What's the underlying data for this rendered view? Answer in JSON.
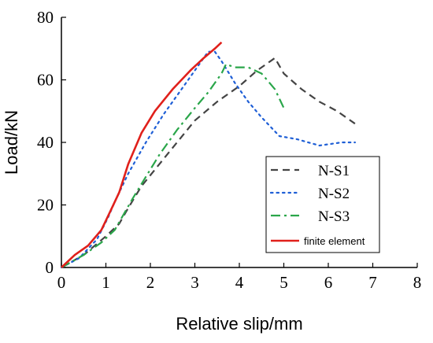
{
  "chart_data": {
    "type": "line",
    "title": "",
    "xlabel": "Relative slip/mm",
    "ylabel": "Load/kN",
    "xlim": [
      0,
      8
    ],
    "ylim": [
      0,
      80
    ],
    "xticks": [
      "0",
      "1",
      "2",
      "3",
      "4",
      "5",
      "6",
      "7",
      "8"
    ],
    "yticks": [
      "0",
      "20",
      "40",
      "60",
      "80"
    ],
    "grid": false,
    "legend_position": "bottom-right",
    "series": [
      {
        "name": "N-S1",
        "color": "#444444",
        "style": "dashed",
        "points": [
          [
            0,
            0
          ],
          [
            0.5,
            4
          ],
          [
            1.0,
            10
          ],
          [
            1.3,
            14
          ],
          [
            1.5,
            19
          ],
          [
            1.8,
            26
          ],
          [
            2.2,
            33
          ],
          [
            2.6,
            40
          ],
          [
            3.0,
            47
          ],
          [
            3.5,
            53
          ],
          [
            4.0,
            58
          ],
          [
            4.4,
            63
          ],
          [
            4.7,
            66
          ],
          [
            4.8,
            67
          ],
          [
            5.0,
            62
          ],
          [
            5.4,
            57
          ],
          [
            5.8,
            53
          ],
          [
            6.2,
            50
          ],
          [
            6.6,
            46
          ]
        ]
      },
      {
        "name": "N-S2",
        "color": "#1f5fd6",
        "style": "dotted",
        "points": [
          [
            0,
            0
          ],
          [
            0.4,
            3
          ],
          [
            0.8,
            9
          ],
          [
            1.05,
            16
          ],
          [
            1.2,
            21
          ],
          [
            1.5,
            30
          ],
          [
            1.9,
            40
          ],
          [
            2.3,
            49
          ],
          [
            2.7,
            57
          ],
          [
            3.0,
            63
          ],
          [
            3.3,
            69
          ],
          [
            3.45,
            69
          ],
          [
            3.6,
            66
          ],
          [
            3.9,
            59
          ],
          [
            4.2,
            53
          ],
          [
            4.5,
            48
          ],
          [
            4.9,
            42
          ],
          [
            5.3,
            41
          ],
          [
            5.8,
            39
          ],
          [
            6.3,
            40
          ],
          [
            6.6,
            40
          ]
        ]
      },
      {
        "name": "N-S3",
        "color": "#2aa64a",
        "style": "dashdot",
        "points": [
          [
            0,
            0
          ],
          [
            0.5,
            4
          ],
          [
            0.9,
            8
          ],
          [
            1.2,
            12
          ],
          [
            1.4,
            17
          ],
          [
            1.6,
            22
          ],
          [
            1.9,
            29
          ],
          [
            2.2,
            36
          ],
          [
            2.6,
            44
          ],
          [
            3.0,
            51
          ],
          [
            3.3,
            56
          ],
          [
            3.6,
            62
          ],
          [
            3.7,
            65
          ],
          [
            3.9,
            64
          ],
          [
            4.2,
            64
          ],
          [
            4.5,
            62
          ],
          [
            4.8,
            57
          ],
          [
            5.0,
            51
          ]
        ]
      },
      {
        "name": "finite element",
        "color": "#e0201b",
        "style": "solid",
        "points": [
          [
            0,
            0
          ],
          [
            0.3,
            4
          ],
          [
            0.6,
            7
          ],
          [
            0.9,
            12
          ],
          [
            1.1,
            18
          ],
          [
            1.3,
            24
          ],
          [
            1.5,
            33
          ],
          [
            1.8,
            43
          ],
          [
            2.1,
            50
          ],
          [
            2.5,
            57
          ],
          [
            2.9,
            63
          ],
          [
            3.2,
            67
          ],
          [
            3.45,
            70
          ],
          [
            3.6,
            72
          ]
        ]
      }
    ]
  }
}
